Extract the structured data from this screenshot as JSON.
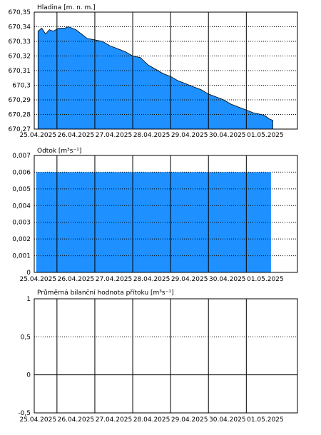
{
  "chart_data": [
    {
      "type": "area",
      "title": "Hladina [m. n. m.]",
      "y_ticks": [
        "670,35",
        "670,34",
        "670,33",
        "670,32",
        "670,31",
        "670,3",
        "670,29",
        "670,28",
        "670,27"
      ],
      "ylim": [
        670.27,
        670.35
      ],
      "x_ticks": [
        "25.04.2025",
        "26.04.2025",
        "27.04.2025",
        "28.04.2025",
        "29.04.2025",
        "30.04.2025",
        "01.05.2025"
      ],
      "x_days": [
        0,
        1,
        2,
        3,
        4,
        5,
        6
      ],
      "color": "#1e90ff",
      "series": [
        {
          "x": [
            0.0,
            0.1,
            0.2,
            0.3,
            0.4,
            0.55,
            0.7,
            0.8,
            0.9,
            1.0,
            1.1,
            1.2,
            1.3,
            1.5,
            1.7,
            1.9,
            2.1,
            2.3,
            2.5,
            2.7,
            2.9,
            3.1,
            3.3,
            3.5,
            3.7,
            3.9,
            4.1,
            4.3,
            4.5,
            4.7,
            4.9,
            5.1,
            5.3,
            5.5,
            5.7,
            5.9,
            6.0,
            6.1,
            6.2
          ],
          "y": [
            670.337,
            670.339,
            670.335,
            670.338,
            670.337,
            670.339,
            670.339,
            670.34,
            670.339,
            670.338,
            670.336,
            670.334,
            670.332,
            670.331,
            670.33,
            670.327,
            670.325,
            670.323,
            670.32,
            670.319,
            670.314,
            670.311,
            670.308,
            670.306,
            670.303,
            670.301,
            670.299,
            670.297,
            670.294,
            670.292,
            670.29,
            670.287,
            670.285,
            670.283,
            670.281,
            670.28,
            670.279,
            670.277,
            670.276
          ]
        }
      ]
    },
    {
      "type": "bar",
      "title": "Odtok [m³s⁻¹]",
      "y_ticks": [
        "0,007",
        "0,006",
        "0,005",
        "0,004",
        "0,003",
        "0,002",
        "0,001",
        "0"
      ],
      "ylim": [
        0,
        0.007
      ],
      "x_ticks": [
        "25.04.2025",
        "26.04.2025",
        "27.04.2025",
        "28.04.2025",
        "29.04.2025",
        "30.04.2025",
        "01.05.2025"
      ],
      "color": "#1e90ff",
      "series": [
        {
          "x_start": -0.05,
          "x_end": 6.15,
          "value": 0.006
        }
      ]
    },
    {
      "type": "line",
      "title": "Průměrná bilanční hodnota přítoku   [m³s⁻¹]",
      "y_ticks": [
        "1",
        "0,5",
        "0",
        "-0,5"
      ],
      "ylim": [
        -0.5,
        1
      ],
      "x_ticks": [
        "25.04.2025",
        "26.04.2025",
        "27.04.2025",
        "28.04.2025",
        "29.04.2025",
        "30.04.2025",
        "01.05.2025"
      ],
      "series": []
    }
  ]
}
